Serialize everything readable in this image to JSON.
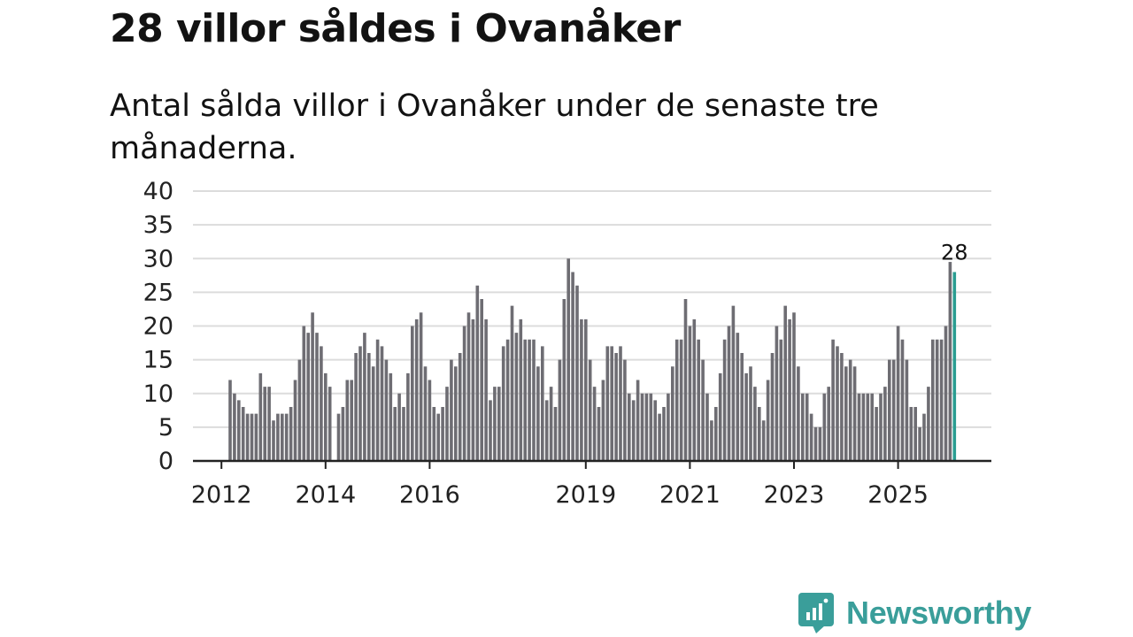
{
  "header": {
    "title": "28 villor såldes i Ovanåker",
    "subtitle": "Antal sålda villor i Ovanåker under de senaste tre månaderna."
  },
  "brand": {
    "name": "Newsworthy",
    "icon": "newsworthy-logo-icon",
    "color": "#3a9e9a"
  },
  "colors": {
    "bar": "#6e6d73",
    "highlight": "#2a9d91",
    "grid": "#dcdcdc",
    "axis": "#222222"
  },
  "chart_data": {
    "type": "bar",
    "title": "28 villor såldes i Ovanåker",
    "subtitle": "Antal sålda villor i Ovanåker under de senaste tre månaderna.",
    "xlabel": "",
    "ylabel": "",
    "ylim": [
      0,
      40
    ],
    "yticks": [
      0,
      5,
      10,
      15,
      20,
      25,
      30,
      35,
      40
    ],
    "grid": true,
    "x_start": {
      "year": 2012,
      "month": 3
    },
    "xtick_labels": [
      "2012",
      "2014",
      "2016",
      "2019",
      "2021",
      "2023",
      "2025"
    ],
    "highlight_last": true,
    "last_value_label": "28",
    "values": [
      12,
      10,
      9,
      8,
      7,
      7,
      7,
      13,
      11,
      11,
      6,
      7,
      7,
      7,
      8,
      12,
      15,
      20,
      19,
      22,
      19,
      17,
      13,
      11,
      0,
      7,
      8,
      12,
      12,
      16,
      17,
      19,
      16,
      14,
      18,
      17,
      15,
      13,
      8,
      10,
      8,
      13,
      20,
      21,
      22,
      14,
      12,
      8,
      7,
      8,
      11,
      15,
      14,
      16,
      20,
      22,
      21,
      26,
      24,
      21,
      9,
      11,
      11,
      17,
      18,
      23,
      19,
      21,
      18,
      18,
      18,
      14,
      17,
      9,
      11,
      8,
      15,
      24,
      30,
      28,
      26,
      21,
      21,
      15,
      11,
      8,
      12,
      17,
      17,
      16,
      17,
      15,
      10,
      9,
      12,
      10,
      10,
      10,
      9,
      7,
      8,
      10,
      14,
      18,
      18,
      24,
      20,
      21,
      18,
      15,
      10,
      6,
      8,
      13,
      18,
      20,
      23,
      19,
      16,
      13,
      14,
      11,
      8,
      6,
      12,
      16,
      20,
      18,
      23,
      21,
      22,
      14,
      10,
      10,
      7,
      5,
      5,
      10,
      11,
      18,
      17,
      16,
      14,
      15,
      14,
      10,
      10,
      10,
      10,
      8,
      10,
      11,
      15,
      15,
      20,
      18,
      15,
      8,
      8,
      5,
      7,
      11,
      18,
      18,
      18,
      20,
      29.5,
      28
    ]
  }
}
